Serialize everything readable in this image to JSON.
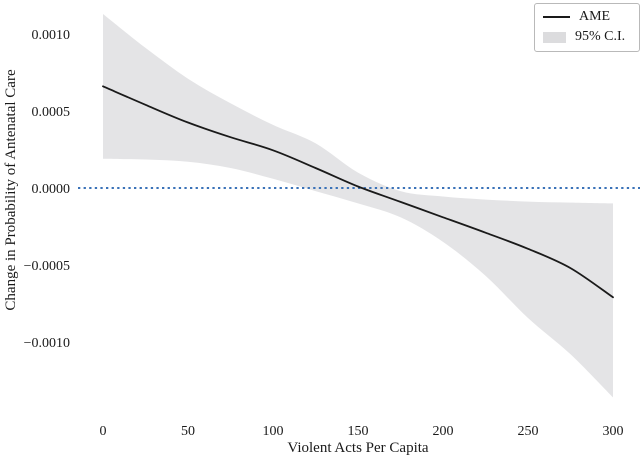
{
  "figure": {
    "background": "#ffffff"
  },
  "legend": {
    "position": "upper right",
    "items": [
      {
        "label": "AME",
        "swatch": "line",
        "color": "#1a1a1a"
      },
      {
        "label": "95% C.I.",
        "swatch": "patch",
        "color": "#dcdcde"
      }
    ]
  },
  "chart_data": {
    "type": "line",
    "title": "",
    "xlabel": "Violent Acts Per Capita",
    "ylabel": "Change in Probability of Antenatal Care",
    "x": [
      0,
      25,
      50,
      75,
      100,
      125,
      150,
      175,
      200,
      225,
      250,
      275,
      300
    ],
    "series": [
      {
        "name": "AME",
        "values": [
          0.00066,
          0.00054,
          0.000425,
          0.00033,
          0.000245,
          0.00013,
          1e-05,
          -9e-05,
          -0.00019,
          -0.00029,
          -0.000395,
          -0.00052,
          -0.00071
        ]
      },
      {
        "name": "95% C.I. upper",
        "values": [
          0.00113,
          0.00091,
          0.00071,
          0.00055,
          0.00041,
          0.00029,
          0.0001,
          -2e-05,
          -5.5e-05,
          -7.5e-05,
          -8.8e-05,
          -9.5e-05,
          -0.0001
        ]
      },
      {
        "name": "95% C.I. lower",
        "values": [
          0.00019,
          0.000185,
          0.00017,
          0.00013,
          6e-05,
          -2e-05,
          -0.0001,
          -0.00019,
          -0.00035,
          -0.00057,
          -0.000844,
          -0.00108,
          -0.00136
        ]
      }
    ],
    "xticks": {
      "values": [
        0,
        50,
        100,
        150,
        200,
        250,
        300
      ],
      "labels": [
        "0",
        "50",
        "100",
        "150",
        "200",
        "250",
        "300"
      ]
    },
    "yticks": {
      "values": [
        0.001,
        0.0005,
        0.0,
        -0.0005,
        -0.001
      ],
      "labels": [
        "0.0010",
        "0.0005",
        "0.0000",
        "−0.0005",
        "−0.0010"
      ]
    },
    "xlim": [
      -15,
      315
    ],
    "ylim": [
      -0.00149,
      0.00129
    ],
    "zero_line": {
      "y": 0,
      "style": "dotted",
      "color": "#3a72b8"
    },
    "colors": {
      "ame_line": "#1a1a1a",
      "ci_band": "#e4e4e6"
    },
    "grid": false,
    "legend_position": "upper right"
  }
}
